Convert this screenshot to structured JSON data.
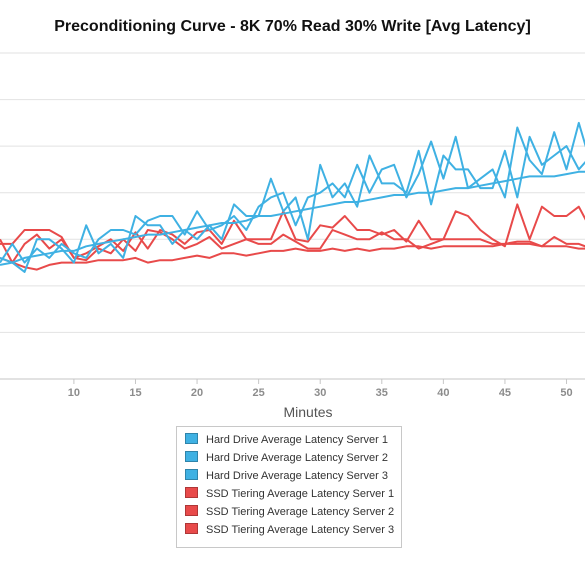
{
  "chart_data": {
    "type": "line",
    "title": "Preconditioning Curve - 8K 70% Read 30% Write [Avg Latency]",
    "xlabel": "Minutes",
    "ylabel": "",
    "xticks": [
      10,
      15,
      20,
      25,
      30,
      35,
      40,
      45,
      50
    ],
    "xlim": [
      4,
      51.5
    ],
    "ylim": [
      0,
      7
    ],
    "grid": "horizontal",
    "legend_position": "bottom",
    "x": [
      4,
      5,
      6,
      7,
      8,
      9,
      10,
      11,
      12,
      13,
      14,
      15,
      16,
      17,
      18,
      19,
      20,
      21,
      22,
      23,
      24,
      25,
      26,
      27,
      28,
      29,
      30,
      31,
      32,
      33,
      34,
      35,
      36,
      37,
      38,
      39,
      40,
      41,
      42,
      43,
      44,
      45,
      46,
      47,
      48,
      49,
      50,
      51,
      52
    ],
    "series": [
      {
        "name": "Hard Drive Average Latency Server 1",
        "color": "#3fb1e3",
        "values": [
          2.45,
          2.5,
          2.6,
          2.65,
          2.7,
          2.75,
          2.75,
          2.85,
          2.9,
          2.95,
          3.0,
          3.05,
          3.1,
          3.1,
          3.15,
          3.2,
          3.25,
          3.3,
          3.35,
          3.35,
          3.4,
          3.5,
          3.5,
          3.55,
          3.6,
          3.65,
          3.7,
          3.75,
          3.8,
          3.8,
          3.85,
          3.9,
          3.95,
          3.95,
          4.0,
          4.0,
          4.05,
          4.1,
          4.1,
          4.15,
          4.2,
          4.25,
          4.3,
          4.35,
          4.35,
          4.35,
          4.4,
          4.45,
          4.45
        ]
      },
      {
        "name": "Hard Drive Average Latency Server 2",
        "color": "#3fb1e3",
        "values": [
          2.6,
          2.5,
          2.3,
          3.0,
          3.0,
          2.8,
          2.5,
          3.3,
          2.7,
          2.9,
          2.6,
          3.5,
          3.3,
          3.3,
          2.9,
          3.2,
          3.0,
          3.3,
          3.0,
          3.75,
          3.5,
          3.5,
          4.3,
          3.6,
          3.9,
          3.0,
          4.6,
          3.9,
          4.2,
          3.7,
          4.8,
          4.2,
          4.2,
          4.0,
          4.9,
          3.75,
          4.8,
          4.5,
          4.5,
          4.1,
          4.1,
          4.9,
          3.9,
          5.2,
          4.6,
          4.8,
          5.0,
          4.5,
          4.8
        ]
      },
      {
        "name": "Hard Drive Average Latency Server 3",
        "color": "#3fb1e3",
        "values": [
          2.5,
          2.9,
          2.5,
          2.8,
          2.6,
          2.9,
          2.7,
          2.6,
          3.0,
          3.2,
          3.2,
          3.1,
          3.4,
          3.5,
          3.5,
          3.1,
          3.6,
          3.2,
          3.3,
          3.5,
          3.2,
          3.7,
          3.9,
          4.0,
          3.3,
          3.9,
          4.0,
          4.2,
          3.9,
          4.6,
          4.0,
          4.5,
          4.6,
          3.9,
          4.4,
          5.1,
          4.3,
          5.2,
          4.1,
          4.3,
          4.5,
          3.9,
          5.4,
          4.7,
          4.4,
          5.3,
          4.5,
          5.5,
          4.6
        ]
      },
      {
        "name": "SSD Tiering Average Latency Server 1",
        "color": "#e84a4a",
        "values": [
          2.6,
          2.5,
          2.4,
          2.35,
          2.45,
          2.5,
          2.5,
          2.5,
          2.55,
          2.55,
          2.55,
          2.6,
          2.5,
          2.55,
          2.55,
          2.6,
          2.65,
          2.6,
          2.7,
          2.7,
          2.65,
          2.7,
          2.75,
          2.75,
          2.8,
          2.75,
          2.75,
          2.8,
          2.75,
          2.8,
          2.75,
          2.8,
          2.8,
          2.85,
          2.85,
          2.8,
          2.85,
          2.85,
          2.85,
          2.85,
          2.85,
          2.9,
          2.9,
          2.9,
          2.85,
          2.85,
          2.85,
          2.8,
          2.8
        ]
      },
      {
        "name": "SSD Tiering Average Latency Server 2",
        "color": "#e84a4a",
        "values": [
          3.0,
          2.5,
          2.9,
          3.1,
          2.8,
          3.0,
          2.6,
          2.55,
          2.8,
          2.7,
          3.0,
          2.75,
          3.2,
          3.15,
          3.0,
          2.8,
          2.9,
          3.05,
          2.8,
          2.9,
          3.0,
          2.9,
          2.9,
          3.1,
          2.95,
          2.8,
          2.8,
          3.2,
          3.1,
          3.0,
          3.0,
          3.15,
          3.0,
          3.0,
          2.8,
          2.9,
          3.0,
          3.0,
          3.0,
          3.0,
          2.9,
          2.9,
          2.95,
          2.95,
          2.85,
          3.05,
          2.9,
          2.9,
          2.8
        ]
      },
      {
        "name": "SSD Tiering Average Latency Server 3",
        "color": "#e84a4a",
        "values": [
          2.9,
          2.9,
          3.2,
          3.2,
          3.2,
          3.05,
          2.6,
          2.7,
          2.85,
          3.0,
          2.75,
          3.15,
          2.8,
          3.2,
          3.1,
          2.9,
          3.15,
          3.2,
          2.9,
          3.4,
          3.0,
          3.0,
          3.0,
          3.6,
          3.0,
          2.95,
          3.3,
          3.25,
          3.5,
          3.2,
          3.2,
          3.1,
          3.2,
          2.95,
          3.4,
          3.0,
          3.0,
          3.6,
          3.5,
          3.2,
          3.0,
          2.85,
          3.75,
          3.0,
          3.7,
          3.5,
          3.5,
          3.7,
          3.2
        ]
      }
    ]
  }
}
